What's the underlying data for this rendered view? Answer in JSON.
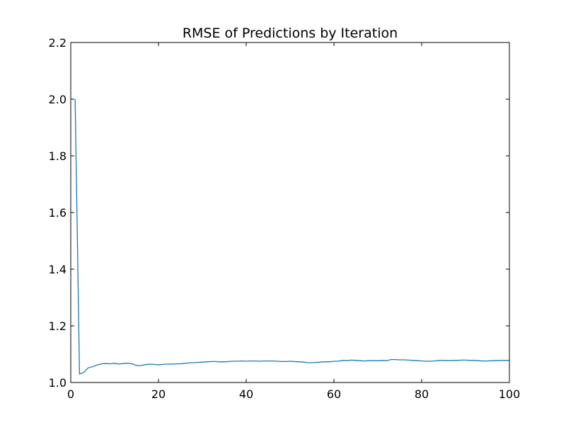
{
  "chart_data": {
    "type": "line",
    "title": "RMSE of Predictions by Iteration",
    "xlabel": "",
    "ylabel": "",
    "xlim": [
      0,
      100
    ],
    "ylim": [
      1.0,
      2.2
    ],
    "xticks": [
      0,
      20,
      40,
      60,
      80,
      100
    ],
    "yticks": [
      1.0,
      1.2,
      1.4,
      1.6,
      1.8,
      2.0,
      2.2
    ],
    "grid": false,
    "line_color": "#1f77b4",
    "series": [
      {
        "x": [
          1,
          2,
          3,
          4,
          5,
          6,
          7,
          8,
          9,
          10,
          11,
          12,
          13,
          14,
          15,
          16,
          17,
          18,
          19,
          20,
          21,
          22,
          23,
          24,
          25,
          26,
          27,
          28,
          29,
          30,
          31,
          32,
          33,
          34,
          35,
          36,
          37,
          38,
          39,
          40,
          41,
          42,
          43,
          44,
          45,
          46,
          47,
          48,
          49,
          50,
          51,
          52,
          53,
          54,
          55,
          56,
          57,
          58,
          59,
          60,
          61,
          62,
          63,
          64,
          65,
          66,
          67,
          68,
          69,
          70,
          71,
          72,
          73,
          74,
          75,
          76,
          77,
          78,
          79,
          80,
          81,
          82,
          83,
          84,
          85,
          86,
          87,
          88,
          89,
          90,
          91,
          92,
          93,
          94,
          95,
          96,
          97,
          98,
          99,
          100
        ],
        "values": [
          2.0,
          1.03,
          1.036,
          1.052,
          1.056,
          1.062,
          1.066,
          1.067,
          1.066,
          1.068,
          1.065,
          1.067,
          1.068,
          1.066,
          1.06,
          1.06,
          1.063,
          1.065,
          1.064,
          1.062,
          1.064,
          1.065,
          1.065,
          1.066,
          1.066,
          1.068,
          1.069,
          1.07,
          1.071,
          1.072,
          1.073,
          1.074,
          1.074,
          1.073,
          1.073,
          1.074,
          1.075,
          1.075,
          1.076,
          1.075,
          1.076,
          1.076,
          1.075,
          1.076,
          1.076,
          1.076,
          1.075,
          1.074,
          1.074,
          1.075,
          1.074,
          1.073,
          1.072,
          1.07,
          1.07,
          1.071,
          1.072,
          1.073,
          1.073,
          1.075,
          1.075,
          1.078,
          1.077,
          1.079,
          1.078,
          1.077,
          1.076,
          1.077,
          1.077,
          1.077,
          1.078,
          1.077,
          1.081,
          1.081,
          1.08,
          1.08,
          1.079,
          1.078,
          1.077,
          1.076,
          1.075,
          1.075,
          1.076,
          1.078,
          1.078,
          1.077,
          1.078,
          1.078,
          1.079,
          1.079,
          1.078,
          1.078,
          1.077,
          1.076,
          1.076,
          1.077,
          1.077,
          1.078,
          1.078,
          1.078
        ]
      }
    ]
  }
}
